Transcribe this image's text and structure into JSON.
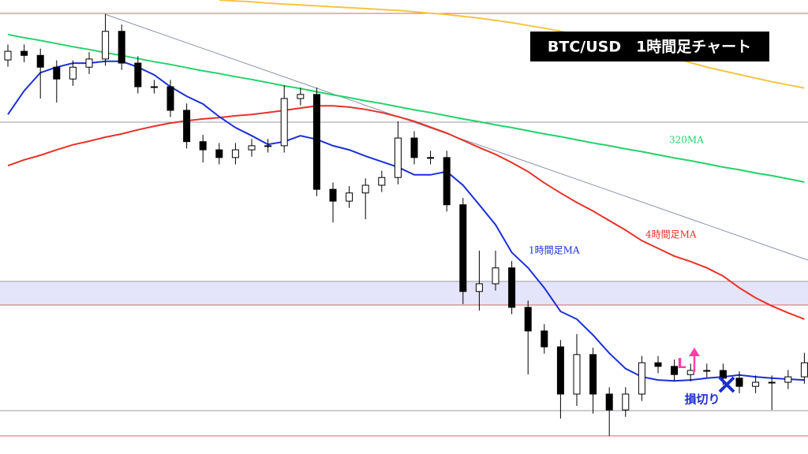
{
  "chart_data": {
    "type": "candlestick",
    "title": "BTC/USD　1時間足チャート",
    "ylim": [
      0,
      100
    ],
    "open": [
      86.8,
      88.7,
      87.8,
      85.2,
      82.6,
      85.2,
      87.0,
      93.1,
      86.1,
      80.9,
      80.9,
      75.7,
      68.8,
      67.0,
      65.3,
      67.0,
      67.9,
      67.9,
      78.3,
      79.2,
      58.3,
      55.7,
      57.5,
      59.2,
      60.9,
      69.6,
      65.3,
      65.3,
      54.9,
      35.8,
      37.5,
      41.0,
      32.3,
      27.1,
      23.6,
      13.2,
      21.9,
      13.2,
      9.7,
      13.2,
      20.1,
      19.3,
      17.5,
      18.4,
      18.4,
      16.7,
      14.9,
      15.8,
      15.8,
      17.0
    ],
    "high": [
      90.2,
      90.2,
      89.3,
      86.7,
      86.7,
      88.5,
      96.9,
      94.6,
      87.6,
      82.4,
      82.4,
      77.2,
      70.3,
      68.5,
      68.5,
      69.4,
      69.4,
      81.2,
      80.7,
      80.7,
      59.8,
      59.0,
      60.7,
      62.4,
      73.3,
      71.1,
      66.8,
      66.8,
      56.4,
      44.8,
      44.8,
      42.5,
      33.8,
      28.6,
      25.1,
      26.4,
      23.4,
      14.7,
      14.7,
      21.6,
      21.6,
      20.8,
      19.9,
      19.9,
      19.9,
      18.2,
      17.3,
      17.3,
      18.5,
      22.3
    ],
    "low": [
      85.3,
      86.3,
      78.3,
      77.4,
      81.1,
      83.7,
      85.5,
      84.6,
      79.4,
      79.4,
      74.2,
      67.3,
      64.2,
      63.8,
      63.8,
      65.5,
      66.4,
      66.4,
      76.8,
      56.8,
      51.0,
      54.2,
      51.7,
      57.7,
      59.4,
      63.8,
      63.8,
      53.4,
      33.0,
      31.6,
      36.0,
      30.8,
      17.5,
      22.1,
      7.8,
      10.6,
      8.9,
      4.0,
      8.2,
      11.7,
      17.8,
      16.0,
      16.0,
      16.9,
      15.2,
      13.4,
      13.4,
      9.7,
      14.3,
      15.5
    ],
    "close": [
      88.7,
      87.8,
      85.2,
      82.6,
      85.2,
      87.0,
      93.1,
      86.1,
      80.9,
      80.9,
      75.7,
      68.8,
      67.0,
      65.3,
      67.0,
      67.9,
      67.9,
      78.3,
      79.2,
      58.3,
      55.7,
      57.5,
      59.2,
      60.9,
      69.6,
      65.3,
      65.3,
      54.9,
      35.8,
      37.5,
      41.0,
      32.3,
      27.1,
      23.6,
      13.2,
      21.9,
      13.2,
      9.7,
      13.2,
      20.1,
      19.3,
      17.5,
      18.4,
      18.4,
      16.7,
      14.9,
      15.8,
      15.8,
      17.0,
      20.1
    ],
    "overlays": [
      {
        "label": "320MA",
        "color": "#22d36b",
        "values": [
          92.4,
          91.7,
          91.1,
          90.4,
          89.7,
          89.1,
          88.4,
          87.8,
          87.1,
          86.4,
          85.8,
          85.1,
          84.4,
          83.8,
          83.1,
          82.5,
          81.8,
          81.1,
          80.5,
          79.8,
          79.1,
          78.5,
          77.8,
          77.2,
          76.5,
          75.8,
          75.2,
          74.5,
          73.8,
          73.2,
          72.5,
          71.9,
          71.2,
          70.5,
          69.9,
          69.2,
          68.5,
          67.9,
          67.2,
          66.6,
          65.9,
          65.2,
          64.6,
          63.9,
          63.2,
          62.6,
          61.9,
          61.3,
          60.6,
          59.9
        ]
      },
      {
        "label": "4時間足MA",
        "color": "#e8312a",
        "values": [
          63.5,
          64.8,
          65.8,
          67.0,
          68.1,
          68.9,
          69.8,
          70.5,
          71.4,
          72.2,
          72.9,
          73.4,
          73.8,
          74.1,
          74.5,
          74.8,
          75.2,
          75.7,
          76.2,
          76.7,
          76.7,
          76.4,
          75.9,
          75.2,
          74.3,
          73.3,
          72.0,
          70.7,
          69.1,
          67.5,
          66.0,
          64.2,
          62.2,
          59.7,
          57.5,
          55.4,
          53.5,
          51.4,
          49.3,
          47.0,
          45.3,
          43.6,
          42.4,
          41.0,
          39.2,
          36.6,
          34.4,
          32.6,
          31.1,
          29.7
        ]
      },
      {
        "label": "1時間足MA",
        "color": "#1b2fd6",
        "values": [
          74.8,
          80.0,
          84.0,
          85.2,
          86.1,
          86.1,
          86.5,
          86.5,
          85.2,
          83.5,
          80.9,
          78.8,
          77.1,
          74.3,
          71.9,
          70.1,
          68.2,
          68.8,
          70.1,
          69.3,
          67.9,
          67.0,
          65.6,
          64.4,
          63.2,
          61.5,
          61.5,
          62.2,
          59.2,
          54.9,
          50.5,
          44.4,
          41.0,
          36.6,
          31.4,
          29.7,
          26.2,
          22.2,
          18.8,
          17.0,
          16.3,
          16.1,
          16.3,
          16.7,
          17.0,
          17.4,
          17.0,
          16.7,
          16.5,
          16.3
        ]
      },
      {
        "color": "#f5c542",
        "values": [
          null,
          null,
          null,
          null,
          null,
          null,
          null,
          null,
          null,
          null,
          null,
          null,
          null,
          100.0,
          99.8,
          99.6,
          99.3,
          99.1,
          98.9,
          98.7,
          98.5,
          98.3,
          98.1,
          97.9,
          97.7,
          97.4,
          97.1,
          96.8,
          96.4,
          96.0,
          95.5,
          95.0,
          94.4,
          93.8,
          93.1,
          92.4,
          91.6,
          90.8,
          90.0,
          89.1,
          88.2,
          87.2,
          86.2,
          85.2,
          84.4,
          83.6,
          82.8,
          82.0,
          81.3,
          80.6
        ]
      }
    ],
    "annotations": {
      "entry": "L",
      "stop": "損切り"
    }
  }
}
